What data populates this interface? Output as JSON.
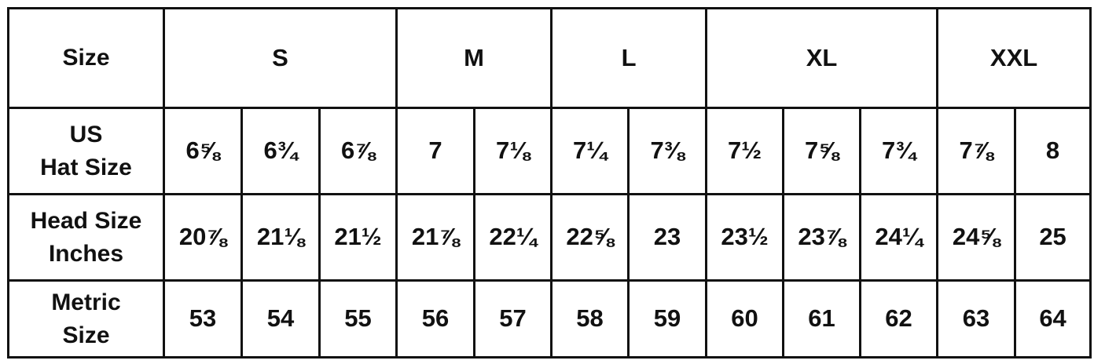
{
  "table": {
    "header": {
      "label": "Size",
      "groups": [
        {
          "name": "S",
          "span": 3
        },
        {
          "name": "M",
          "span": 2
        },
        {
          "name": "L",
          "span": 2
        },
        {
          "name": "XL",
          "span": 3
        },
        {
          "name": "XXL",
          "span": 2
        }
      ]
    },
    "rows": [
      {
        "label_lines": [
          "US",
          "Hat Size"
        ],
        "values": [
          "6⅝",
          "6¾",
          "6⅞",
          "7",
          "7⅛",
          "7¼",
          "7⅜",
          "7½",
          "7⅝",
          "7¾",
          "7⅞",
          "8"
        ]
      },
      {
        "label_lines": [
          "Head Size",
          "Inches"
        ],
        "values": [
          "20⅞",
          "21⅛",
          "21½",
          "21⅞",
          "22¼",
          "22⅝",
          "23",
          "23½",
          "23⅞",
          "24¼",
          "24⅝",
          "25"
        ]
      },
      {
        "label_lines": [
          "Metric",
          "Size"
        ],
        "values": [
          "53",
          "54",
          "55",
          "56",
          "57",
          "58",
          "59",
          "60",
          "61",
          "62",
          "63",
          "64"
        ]
      }
    ]
  }
}
